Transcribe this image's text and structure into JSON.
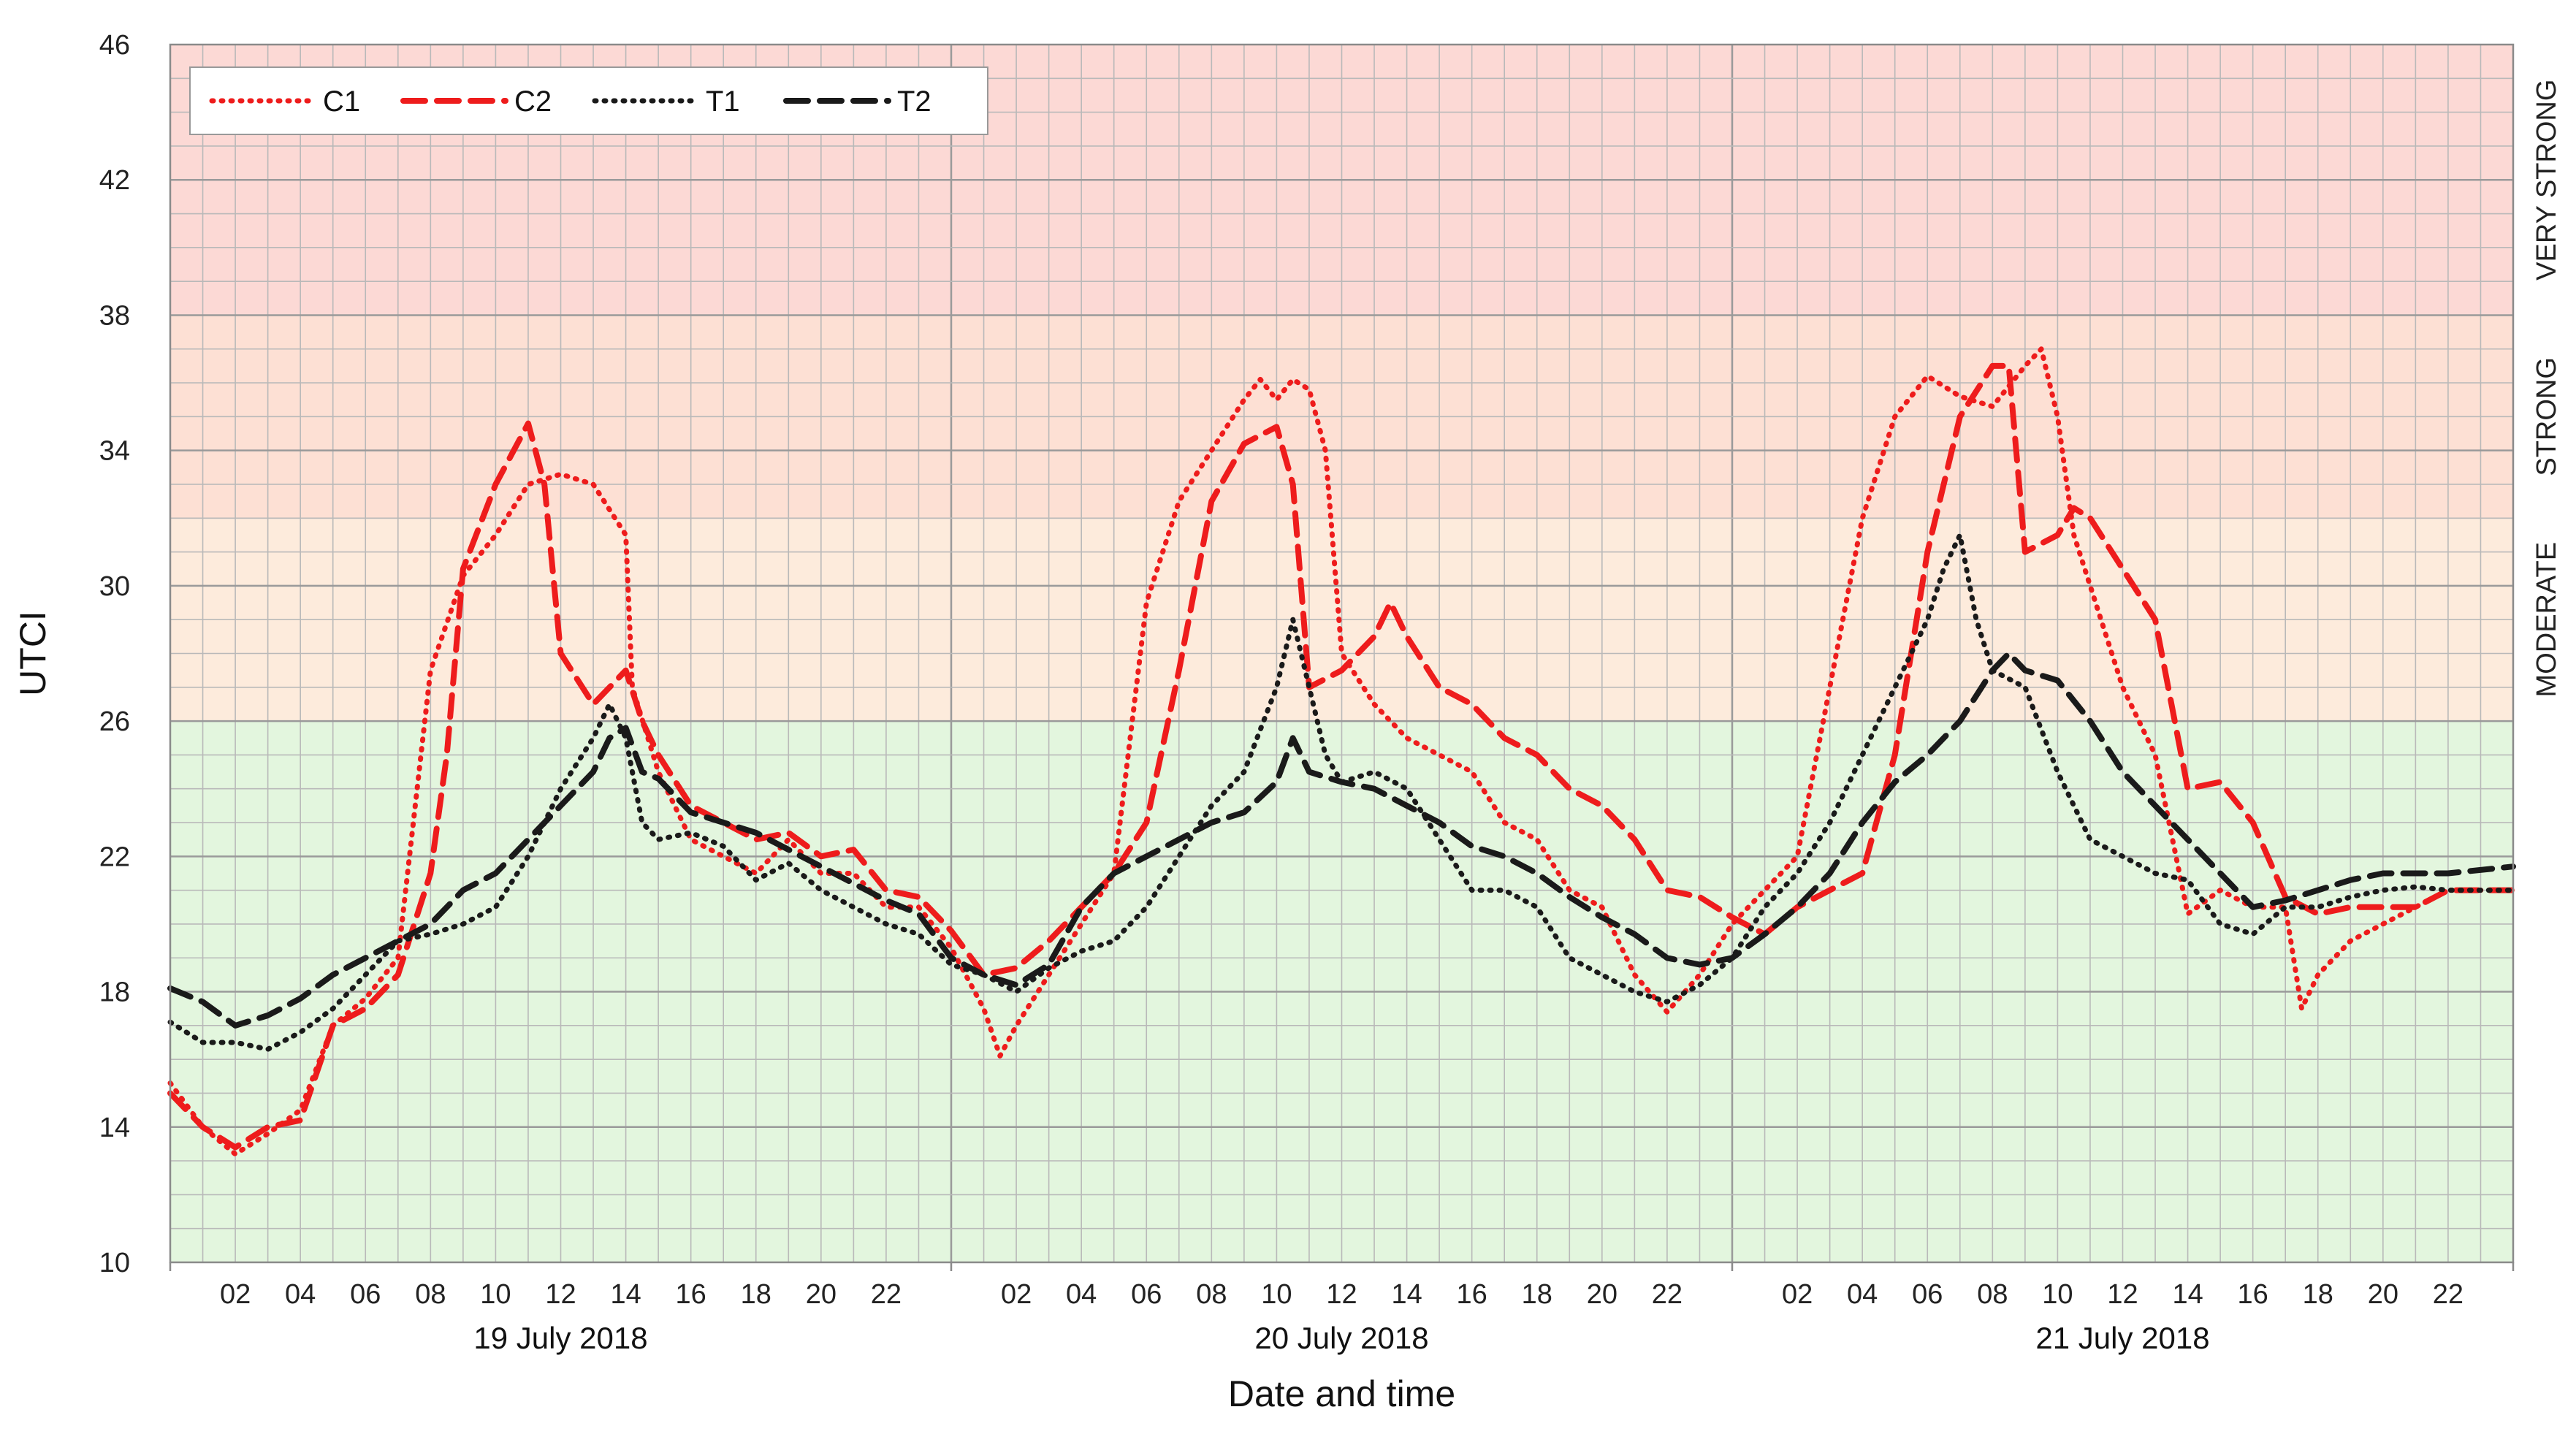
{
  "chart_data": {
    "type": "line",
    "xlabel": "Date and time",
    "ylabel": "UTCI",
    "ylim": [
      10,
      46
    ],
    "yticks": [
      10,
      14,
      18,
      22,
      26,
      30,
      34,
      38,
      42,
      46
    ],
    "xlim": [
      0,
      72
    ],
    "x_unit": "hours since 19 July 2018 00:00",
    "xtick_labels": [
      "02",
      "04",
      "06",
      "08",
      "10",
      "12",
      "14",
      "16",
      "18",
      "20",
      "22"
    ],
    "dates": [
      "19 July 2018",
      "20 July 2018",
      "21 July 2018"
    ],
    "grid": true,
    "legend_position": "top-left",
    "stress_bands": [
      {
        "label": "",
        "from": 10,
        "to": 26,
        "color": "#e3f6de"
      },
      {
        "label": "MODERATE",
        "from": 26,
        "to": 32,
        "color": "#fdebdc"
      },
      {
        "label": "STRONG",
        "from": 32,
        "to": 38,
        "color": "#fde0d4"
      },
      {
        "label": "VERY STRONG",
        "from": 38,
        "to": 46,
        "color": "#fcd9d5"
      }
    ],
    "series": [
      {
        "name": "C1",
        "color": "#ee1c1c",
        "style": "dotted",
        "points": [
          [
            0,
            15.3
          ],
          [
            1,
            14
          ],
          [
            2,
            13.2
          ],
          [
            3,
            13.8
          ],
          [
            4,
            14.5
          ],
          [
            5,
            17
          ],
          [
            6,
            17.8
          ],
          [
            7,
            19
          ],
          [
            8,
            27.5
          ],
          [
            9,
            30.3
          ],
          [
            10,
            31.5
          ],
          [
            11,
            33
          ],
          [
            12,
            33.3
          ],
          [
            13,
            33
          ],
          [
            14,
            31.5
          ],
          [
            14.2,
            27
          ],
          [
            15,
            24.5
          ],
          [
            16,
            22.5
          ],
          [
            17,
            22
          ],
          [
            18,
            21.5
          ],
          [
            19,
            22.5
          ],
          [
            20,
            21.5
          ],
          [
            21,
            21.5
          ],
          [
            22,
            20.5
          ],
          [
            23,
            20.5
          ],
          [
            24,
            19.3
          ],
          [
            25,
            17.5
          ],
          [
            25.5,
            16.1
          ],
          [
            26,
            17
          ],
          [
            27,
            18.5
          ],
          [
            28,
            20
          ],
          [
            29,
            21.5
          ],
          [
            30,
            29.5
          ],
          [
            31,
            32.5
          ],
          [
            32,
            34
          ],
          [
            33,
            35.5
          ],
          [
            33.5,
            36.1
          ],
          [
            34,
            35.5
          ],
          [
            34.5,
            36.1
          ],
          [
            35,
            35.8
          ],
          [
            35.5,
            34
          ],
          [
            36,
            28
          ],
          [
            37,
            26.5
          ],
          [
            38,
            25.5
          ],
          [
            39,
            25
          ],
          [
            40,
            24.5
          ],
          [
            41,
            23
          ],
          [
            42,
            22.5
          ],
          [
            43,
            21
          ],
          [
            44,
            20.5
          ],
          [
            45,
            18.5
          ],
          [
            46,
            17.4
          ],
          [
            47,
            18.5
          ],
          [
            48,
            20
          ],
          [
            49,
            21
          ],
          [
            50,
            22
          ],
          [
            51,
            27
          ],
          [
            52,
            32
          ],
          [
            53,
            35
          ],
          [
            54,
            36.2
          ],
          [
            55,
            35.6
          ],
          [
            56,
            35.3
          ],
          [
            57,
            36.5
          ],
          [
            57.5,
            37
          ],
          [
            58,
            35
          ],
          [
            58.5,
            31.5
          ],
          [
            59,
            30
          ],
          [
            60,
            27
          ],
          [
            61,
            25
          ],
          [
            62,
            20.3
          ],
          [
            63,
            21
          ],
          [
            64,
            20.5
          ],
          [
            65,
            20.5
          ],
          [
            65.5,
            17.5
          ],
          [
            66,
            18.5
          ],
          [
            67,
            19.5
          ],
          [
            68,
            20
          ],
          [
            69,
            20.5
          ],
          [
            70,
            21
          ],
          [
            72,
            21
          ]
        ]
      },
      {
        "name": "C2",
        "color": "#ee1c1c",
        "style": "dashed",
        "points": [
          [
            0,
            15
          ],
          [
            1,
            14
          ],
          [
            2,
            13.4
          ],
          [
            3,
            14
          ],
          [
            4,
            14.2
          ],
          [
            5,
            17
          ],
          [
            6,
            17.5
          ],
          [
            7,
            18.5
          ],
          [
            8,
            21.5
          ],
          [
            8.5,
            25
          ],
          [
            9,
            30.5
          ],
          [
            10,
            33
          ],
          [
            11,
            34.8
          ],
          [
            11.5,
            33
          ],
          [
            12,
            28
          ],
          [
            13,
            26.5
          ],
          [
            14,
            27.5
          ],
          [
            14.5,
            26
          ],
          [
            15,
            25
          ],
          [
            16,
            23.5
          ],
          [
            17,
            23
          ],
          [
            18,
            22.5
          ],
          [
            19,
            22.7
          ],
          [
            20,
            22
          ],
          [
            21,
            22.2
          ],
          [
            22,
            21
          ],
          [
            23,
            20.8
          ],
          [
            24,
            19.8
          ],
          [
            25,
            18.5
          ],
          [
            26,
            18.7
          ],
          [
            27,
            19.5
          ],
          [
            28,
            20.5
          ],
          [
            29,
            21.5
          ],
          [
            30,
            23
          ],
          [
            31,
            27.5
          ],
          [
            32,
            32.5
          ],
          [
            33,
            34.2
          ],
          [
            34,
            34.7
          ],
          [
            34.5,
            33
          ],
          [
            35,
            27
          ],
          [
            36,
            27.5
          ],
          [
            37,
            28.5
          ],
          [
            37.5,
            29.5
          ],
          [
            38,
            28.5
          ],
          [
            39,
            27
          ],
          [
            40,
            26.5
          ],
          [
            41,
            25.5
          ],
          [
            42,
            25
          ],
          [
            43,
            24
          ],
          [
            44,
            23.5
          ],
          [
            45,
            22.5
          ],
          [
            46,
            21
          ],
          [
            47,
            20.8
          ],
          [
            48,
            20.2
          ],
          [
            49,
            19.7
          ],
          [
            50,
            20.5
          ],
          [
            51,
            21
          ],
          [
            52,
            21.5
          ],
          [
            53,
            25
          ],
          [
            54,
            31
          ],
          [
            55,
            35
          ],
          [
            56,
            36.5
          ],
          [
            56.5,
            36.5
          ],
          [
            57,
            31
          ],
          [
            58,
            31.5
          ],
          [
            58.5,
            32.3
          ],
          [
            59,
            32
          ],
          [
            60,
            30.5
          ],
          [
            61,
            29
          ],
          [
            62,
            24
          ],
          [
            63,
            24.2
          ],
          [
            64,
            23
          ],
          [
            65,
            20.8
          ],
          [
            66,
            20.3
          ],
          [
            67,
            20.5
          ],
          [
            68,
            20.5
          ],
          [
            69,
            20.5
          ],
          [
            70,
            21
          ],
          [
            72,
            21
          ]
        ]
      },
      {
        "name": "T1",
        "color": "#1a1a1a",
        "style": "dotted",
        "points": [
          [
            0,
            17.1
          ],
          [
            1,
            16.5
          ],
          [
            2,
            16.5
          ],
          [
            3,
            16.3
          ],
          [
            4,
            16.8
          ],
          [
            5,
            17.5
          ],
          [
            6,
            18.5
          ],
          [
            7,
            19.5
          ],
          [
            8,
            19.7
          ],
          [
            9,
            20
          ],
          [
            10,
            20.5
          ],
          [
            11,
            22
          ],
          [
            12,
            24
          ],
          [
            13,
            25.5
          ],
          [
            13.5,
            26.5
          ],
          [
            14,
            25.5
          ],
          [
            14.5,
            23
          ],
          [
            15,
            22.5
          ],
          [
            16,
            22.7
          ],
          [
            17,
            22.3
          ],
          [
            18,
            21.3
          ],
          [
            19,
            21.8
          ],
          [
            20,
            21
          ],
          [
            21,
            20.5
          ],
          [
            22,
            20
          ],
          [
            23,
            19.7
          ],
          [
            24,
            18.8
          ],
          [
            25,
            18.5
          ],
          [
            26,
            18
          ],
          [
            27,
            18.7
          ],
          [
            28,
            19.2
          ],
          [
            29,
            19.5
          ],
          [
            30,
            20.5
          ],
          [
            31,
            22
          ],
          [
            32,
            23.5
          ],
          [
            33,
            24.5
          ],
          [
            34,
            27
          ],
          [
            34.5,
            29
          ],
          [
            35,
            27
          ],
          [
            35.5,
            25
          ],
          [
            36,
            24.2
          ],
          [
            37,
            24.5
          ],
          [
            38,
            24
          ],
          [
            39,
            22.5
          ],
          [
            40,
            21
          ],
          [
            41,
            21
          ],
          [
            42,
            20.5
          ],
          [
            43,
            19
          ],
          [
            44,
            18.5
          ],
          [
            45,
            18
          ],
          [
            46,
            17.7
          ],
          [
            47,
            18.2
          ],
          [
            48,
            19
          ],
          [
            49,
            20.5
          ],
          [
            50,
            21.5
          ],
          [
            51,
            23
          ],
          [
            52,
            25
          ],
          [
            53,
            27
          ],
          [
            54,
            29
          ],
          [
            54.5,
            30.5
          ],
          [
            55,
            31.5
          ],
          [
            55.5,
            29
          ],
          [
            56,
            27.5
          ],
          [
            57,
            27
          ],
          [
            58,
            24.5
          ],
          [
            59,
            22.5
          ],
          [
            60,
            22
          ],
          [
            61,
            21.5
          ],
          [
            62,
            21.3
          ],
          [
            63,
            20
          ],
          [
            64,
            19.7
          ],
          [
            65,
            20.5
          ],
          [
            66,
            20.5
          ],
          [
            67,
            20.8
          ],
          [
            68,
            21
          ],
          [
            69,
            21.1
          ],
          [
            70,
            21
          ],
          [
            72,
            21
          ]
        ]
      },
      {
        "name": "T2",
        "color": "#1a1a1a",
        "style": "dashed",
        "points": [
          [
            0,
            18.1
          ],
          [
            1,
            17.7
          ],
          [
            2,
            17
          ],
          [
            3,
            17.3
          ],
          [
            4,
            17.8
          ],
          [
            5,
            18.5
          ],
          [
            6,
            19
          ],
          [
            7,
            19.5
          ],
          [
            8,
            20
          ],
          [
            9,
            21
          ],
          [
            10,
            21.5
          ],
          [
            11,
            22.5
          ],
          [
            12,
            23.5
          ],
          [
            13,
            24.5
          ],
          [
            13.5,
            25.5
          ],
          [
            14,
            25.8
          ],
          [
            14.5,
            24.5
          ],
          [
            15,
            24.3
          ],
          [
            16,
            23.3
          ],
          [
            17,
            23
          ],
          [
            18,
            22.7
          ],
          [
            19,
            22.2
          ],
          [
            20,
            21.7
          ],
          [
            21,
            21.2
          ],
          [
            22,
            20.7
          ],
          [
            23,
            20.3
          ],
          [
            24,
            19
          ],
          [
            25,
            18.5
          ],
          [
            26,
            18.2
          ],
          [
            27,
            18.8
          ],
          [
            28,
            20.5
          ],
          [
            29,
            21.5
          ],
          [
            30,
            22
          ],
          [
            31,
            22.5
          ],
          [
            32,
            23
          ],
          [
            33,
            23.3
          ],
          [
            34,
            24.2
          ],
          [
            34.5,
            25.5
          ],
          [
            35,
            24.5
          ],
          [
            36,
            24.2
          ],
          [
            37,
            24
          ],
          [
            38,
            23.5
          ],
          [
            39,
            23
          ],
          [
            40,
            22.3
          ],
          [
            41,
            22
          ],
          [
            42,
            21.5
          ],
          [
            43,
            20.8
          ],
          [
            44,
            20.2
          ],
          [
            45,
            19.7
          ],
          [
            46,
            19
          ],
          [
            47,
            18.8
          ],
          [
            48,
            19
          ],
          [
            49,
            19.7
          ],
          [
            50,
            20.5
          ],
          [
            51,
            21.5
          ],
          [
            52,
            23
          ],
          [
            53,
            24.2
          ],
          [
            54,
            25
          ],
          [
            55,
            26
          ],
          [
            56,
            27.5
          ],
          [
            56.5,
            28
          ],
          [
            57,
            27.5
          ],
          [
            58,
            27.2
          ],
          [
            59,
            26
          ],
          [
            60,
            24.5
          ],
          [
            61,
            23.5
          ],
          [
            62,
            22.5
          ],
          [
            63,
            21.5
          ],
          [
            64,
            20.5
          ],
          [
            65,
            20.7
          ],
          [
            66,
            21
          ],
          [
            67,
            21.3
          ],
          [
            68,
            21.5
          ],
          [
            69,
            21.5
          ],
          [
            70,
            21.5
          ],
          [
            72,
            21.7
          ]
        ]
      }
    ]
  }
}
